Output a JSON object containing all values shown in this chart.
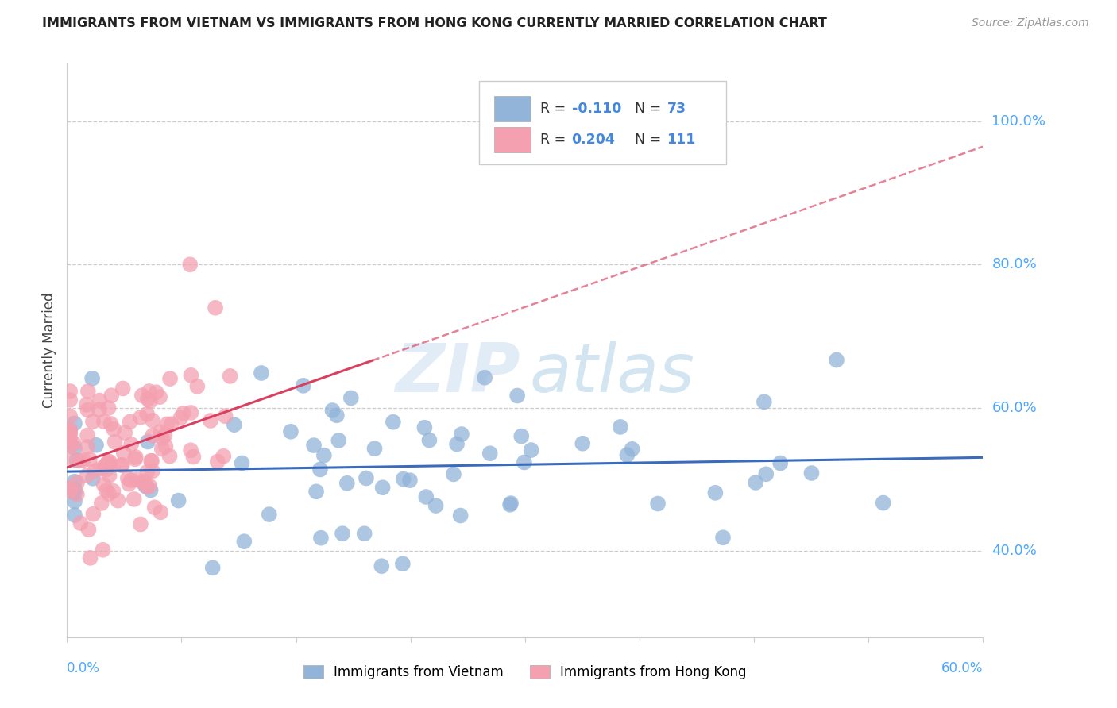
{
  "title": "IMMIGRANTS FROM VIETNAM VS IMMIGRANTS FROM HONG KONG CURRENTLY MARRIED CORRELATION CHART",
  "source": "Source: ZipAtlas.com",
  "ylabel": "Currently Married",
  "yaxis_labels": [
    "100.0%",
    "80.0%",
    "60.0%",
    "40.0%"
  ],
  "yaxis_values": [
    1.0,
    0.8,
    0.6,
    0.4
  ],
  "xlim": [
    0.0,
    0.6
  ],
  "ylim": [
    0.28,
    1.08
  ],
  "legend_r_blue": "-0.110",
  "legend_n_blue": "73",
  "legend_r_pink": "0.204",
  "legend_n_pink": "111",
  "legend_label_blue": "Immigrants from Vietnam",
  "legend_label_pink": "Immigrants from Hong Kong",
  "blue_color": "#92b4d9",
  "pink_color": "#f4a0b0",
  "trendline_blue_color": "#3a6bbd",
  "trendline_pink_color": "#d94060",
  "blue_r": -0.11,
  "pink_r": 0.204,
  "blue_n": 73,
  "pink_n": 111
}
